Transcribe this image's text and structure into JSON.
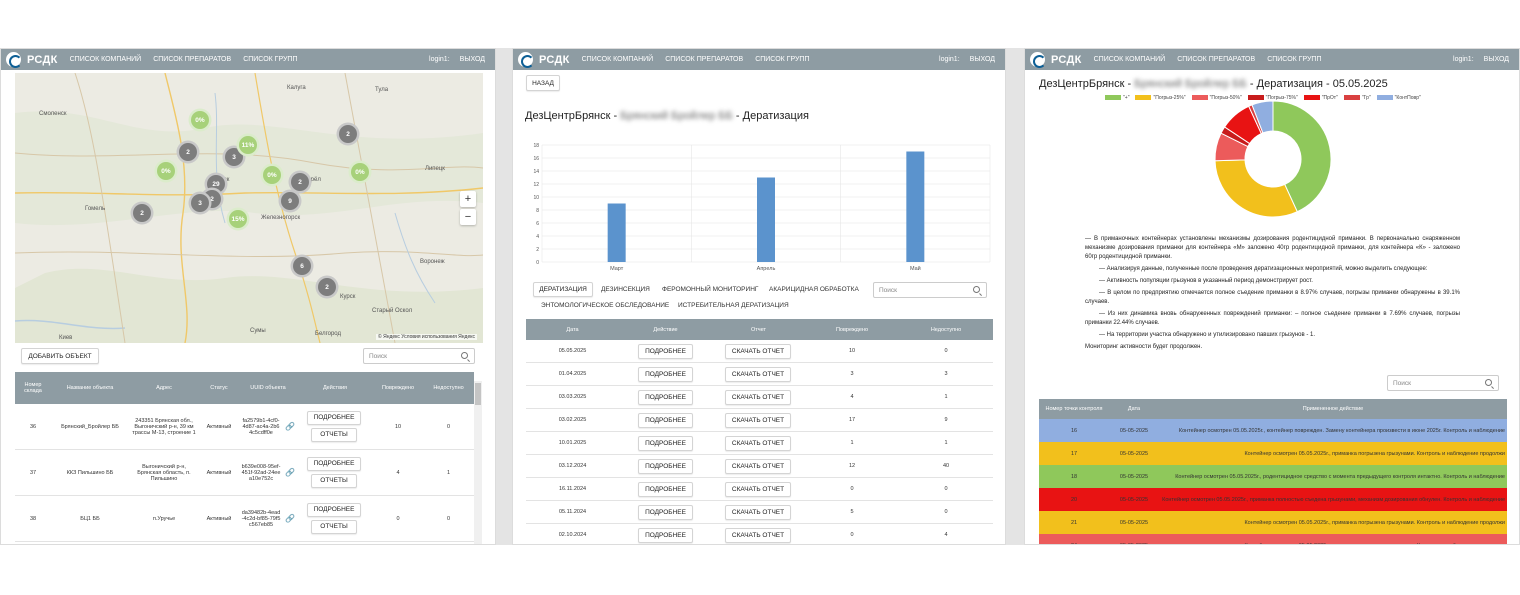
{
  "app": {
    "brand": "РСДК",
    "nav": [
      "СПИСОК КОМПАНИЙ",
      "СПИСОК ПРЕПАРАТОВ",
      "СПИСОК ГРУПП"
    ],
    "login": "login1:",
    "logout": "ВЫХОД"
  },
  "colors": {
    "topbar": "#8e9ca3",
    "bar": "#5b93cd",
    "accent": "#0d5f95"
  },
  "panel1": {
    "add_button": "ДОБАВИТЬ ОБЪЕКТ",
    "search_placeholder": "Поиск",
    "map": {
      "zoom_in": "+",
      "zoom_out": "−",
      "copyright": "© Яндекс Условия использования Яндекс",
      "cities": [
        "Гомель",
        "Брянск",
        "Калуга",
        "Орёл",
        "Курск",
        "Тула",
        "Сумы",
        "Воронеж",
        "Киев",
        "Белгород",
        "Липецк",
        "Смоленск",
        "Старый Оскол",
        "Железногорск"
      ],
      "clusters": [
        {
          "label": "2",
          "type": "gray"
        },
        {
          "label": "0%",
          "type": "green"
        },
        {
          "label": "2",
          "type": "gray"
        },
        {
          "label": "3",
          "type": "gray"
        },
        {
          "label": "11%",
          "type": "green"
        },
        {
          "label": "0%",
          "type": "green"
        },
        {
          "label": "29",
          "type": "gray"
        },
        {
          "label": "2",
          "type": "gray"
        },
        {
          "label": "3",
          "type": "gray"
        },
        {
          "label": "2",
          "type": "gray"
        },
        {
          "label": "0%",
          "type": "green"
        },
        {
          "label": "2",
          "type": "gray"
        },
        {
          "label": "9",
          "type": "gray"
        },
        {
          "label": "0%",
          "type": "green"
        },
        {
          "label": "15%",
          "type": "green"
        },
        {
          "label": "6",
          "type": "gray"
        },
        {
          "label": "2",
          "type": "gray"
        }
      ]
    },
    "table": {
      "headers": [
        "Номер склада",
        "Название объекта",
        "Адрес",
        "Статус",
        "UUID объекта",
        "Действия",
        "Повреждено",
        "Недоступно"
      ],
      "details_button": "ПОДРОБНЕЕ",
      "reports_button": "ОТЧЕТЫ",
      "rows": [
        {
          "num": "36",
          "name": "Брянский_Бройлер ББ",
          "address": "243351 Брянская обл., Выгоничский р-н, 39 км трассы М-13, строение 1",
          "status": "Активный",
          "uuid": "fa2579b1-4cf0-4d87-ac4a-2b64c5cdff0e",
          "damaged": "10",
          "unavailable": "0"
        },
        {
          "num": "37",
          "name": "ККЗ Пильшино ББ",
          "address": "Выгоничский р-н, Брянская область, п. Пильшино",
          "status": "Активный",
          "uuid": "b639e008-95ef-451f-92ad-24eea10e752c",
          "damaged": "4",
          "unavailable": "1"
        },
        {
          "num": "38",
          "name": "БЦ1 ББ",
          "address": "п.Уручье",
          "status": "Активный",
          "uuid": "da39482b-4ead-4c2d-bf85-79f5c567eb85",
          "damaged": "0",
          "unavailable": "0"
        }
      ]
    }
  },
  "panel2": {
    "back_button": "НАЗАД",
    "title_prefix": "ДезЦентрБрянск -",
    "title_hidden": "Брянский Бройлер ББ",
    "title_suffix": "- Дератизация",
    "tabs": [
      "ДЕРАТИЗАЦИЯ",
      "ДЕЗИНСЕКЦИЯ",
      "ФЕРОМОННЫЙ МОНИТОРИНГ",
      "АКАРИЦИДНАЯ ОБРАБОТКА",
      "ЭНТОМОЛОГИЧЕСКОЕ ОБСЛЕДОВАНИЕ",
      "ИСТРЕБИТЕЛЬНАЯ ДЕРАТИЗАЦИЯ"
    ],
    "search_placeholder": "Поиск",
    "table": {
      "headers": [
        "Дата",
        "Действие",
        "Отчет",
        "Повреждено",
        "Недоступно"
      ],
      "details_button": "ПОДРОБНЕЕ",
      "download_button": "СКАЧАТЬ ОТЧЕТ",
      "rows": [
        {
          "date": "05.05.2025",
          "damaged": "10",
          "unavailable": "0"
        },
        {
          "date": "01.04.2025",
          "damaged": "3",
          "unavailable": "3"
        },
        {
          "date": "03.03.2025",
          "damaged": "4",
          "unavailable": "1"
        },
        {
          "date": "03.02.2025",
          "damaged": "17",
          "unavailable": "9"
        },
        {
          "date": "10.01.2025",
          "damaged": "1",
          "unavailable": "1"
        },
        {
          "date": "03.12.2024",
          "damaged": "12",
          "unavailable": "40"
        },
        {
          "date": "16.11.2024",
          "damaged": "0",
          "unavailable": "0"
        },
        {
          "date": "05.11.2024",
          "damaged": "5",
          "unavailable": "0"
        },
        {
          "date": "02.10.2024",
          "damaged": "0",
          "unavailable": "4"
        }
      ]
    }
  },
  "panel3": {
    "title_prefix": "ДезЦентрБрянск -",
    "title_hidden": "Брянский Бройлер ББ",
    "title_suffix": "- Дератизация - 05.05.2025",
    "report": [
      "— В приманочных контейнерах установлены механизмы дозирования родентицидной приманки. В первоначально снаряженном механизме дозирования приманки для контейнера «М» заложено 40гр родентицидной приманки, для контейнера «К» - заложено 60гр родентицидной приманки.",
      "— Анализируя данные, полученные после проведения дератизационных мероприятий, можно выделить следующее:",
      "— Активность популяции грызунов в указанный период демонстрирует рост.",
      "— В целом по предприятию отмечается полное съедение приманки в 8.97% случаев, погрызы приманки обнаружены в 39.1% случаев.",
      "— Из них динамика вновь обнаруженных повреждений приманки: – полное съедение приманки в 7.69% случаев, погрызы приманки 22.44% случаев.",
      "— На территории участка обнаружено и утилизировано павших грызунов - 1.",
      "Мониторинг активности будет продолжен."
    ],
    "search_placeholder": "Поиск",
    "table": {
      "headers": [
        "Номер точки контроля",
        "Дата",
        "Примененное действие"
      ],
      "rows": [
        {
          "point": "16",
          "date": "05-05-2025",
          "action": "Контейнер осмотрен 05.05.2025г., контейнер поврежден. Замену контейнера произвести в июне 2025г. Контроль и наблюдение",
          "color": "#90aee0"
        },
        {
          "point": "17",
          "date": "05-05-2025",
          "action": "Контейнер осмотрен 05.05.2025г., приманка погрызена грызунами. Контроль и наблюдение продолжи",
          "color": "#f2c01c"
        },
        {
          "point": "18",
          "date": "05-05-2025",
          "action": "Контейнер осмотрен 05.05.2025г., родентицидное средство с момента предыдущего контроля интактно. Контроль и наблюдение",
          "color": "#8fc85b"
        },
        {
          "point": "20",
          "date": "05-05-2025",
          "action": "Контейнер осмотрен 05.05.2025г., приманка полностью съедена грызунами, механизм дозирования обнулен. Контроль и наблюдение",
          "color": "#e81313"
        },
        {
          "point": "21",
          "date": "05-05-2025",
          "action": "Контейнер осмотрен 05.05.2025г., приманка погрызена грызунами. Контроль и наблюдение продолжи",
          "color": "#f2c01c"
        },
        {
          "point": "24",
          "date": "05-05-2025",
          "action": "Контейнер осмотрен 05.05.2025г., приманка погрызена грызунами. Контроль и наблюдение продолжи",
          "color": "#ec5b5b"
        }
      ]
    }
  },
  "chart_data": [
    {
      "type": "bar",
      "categories": [
        "Март",
        "Апрель",
        "Май"
      ],
      "values": [
        9,
        13,
        17
      ],
      "ylim": [
        0,
        18
      ],
      "yticks": [
        0,
        2,
        4,
        6,
        8,
        10,
        12,
        14,
        16,
        18
      ],
      "grid": true,
      "color": "#5b93cd"
    },
    {
      "type": "pie",
      "legend": [
        "\"+\"",
        "\"Погрыз-25%\"",
        "\"Погрыз-50%\"",
        "\"Погрыз-75%\"",
        "\"ПрОт\"",
        "\"Гр\"",
        "\"КонтПовр\""
      ],
      "legend_position": "top",
      "colors": [
        "#8fc85b",
        "#f2c01c",
        "#ec5b5b",
        "#c81c1c",
        "#e81313",
        "#d94040",
        "#90aee0"
      ],
      "values": [
        44,
        32,
        8,
        2,
        9,
        1,
        6
      ]
    }
  ]
}
